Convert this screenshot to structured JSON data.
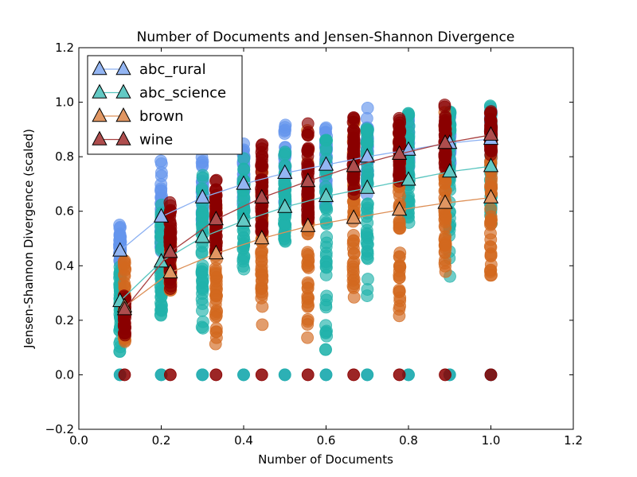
{
  "chart_data": {
    "type": "scatter",
    "title": "Number of Documents and Jensen-Shannon Divergence",
    "xlabel": "Number of Documents",
    "ylabel": "Jensen-Shannon Divergence (scaled)",
    "xlim": [
      0.0,
      1.2
    ],
    "ylim": [
      -0.2,
      1.2
    ],
    "xticks": [
      "0.0",
      "0.2",
      "0.4",
      "0.6",
      "0.8",
      "1.0",
      "1.2"
    ],
    "yticks": [
      "−0.2",
      "0.0",
      "0.2",
      "0.4",
      "0.6",
      "0.8",
      "1.0",
      "1.2"
    ],
    "xtick_values": [
      0.0,
      0.2,
      0.4,
      0.6,
      0.8,
      1.0,
      1.2
    ],
    "ytick_values": [
      -0.2,
      0.0,
      0.2,
      0.4,
      0.6,
      0.8,
      1.0,
      1.2
    ],
    "grid": false,
    "legend_position": "top-left",
    "series": [
      {
        "name": "abc_rural",
        "color": "#6495ED",
        "mean_x": [
          0.1,
          0.2,
          0.3,
          0.4,
          0.5,
          0.6,
          0.7,
          0.8,
          0.9,
          1.0
        ],
        "mean_y": [
          0.455,
          0.58,
          0.65,
          0.7,
          0.74,
          0.77,
          0.8,
          0.825,
          0.85,
          0.865
        ],
        "scatter_ranges": [
          [
            0.4,
            0.56
          ],
          [
            0.45,
            0.79
          ],
          [
            0.55,
            0.82
          ],
          [
            0.55,
            0.86
          ],
          [
            0.58,
            0.92
          ],
          [
            0.62,
            0.94
          ],
          [
            0.65,
            0.98
          ],
          [
            0.7,
            0.96
          ],
          [
            0.72,
            0.97
          ],
          [
            0.74,
            0.98
          ]
        ],
        "zeros": true
      },
      {
        "name": "abc_science",
        "color": "#20B2AA",
        "mean_x": [
          0.1,
          0.2,
          0.3,
          0.4,
          0.5,
          0.6,
          0.7,
          0.8,
          0.9,
          1.0
        ],
        "mean_y": [
          0.27,
          0.415,
          0.505,
          0.565,
          0.615,
          0.655,
          0.685,
          0.715,
          0.745,
          0.765
        ],
        "scatter_ranges": [
          [
            0.08,
            0.4
          ],
          [
            0.17,
            0.64
          ],
          [
            0.17,
            0.74
          ],
          [
            0.38,
            0.82
          ],
          [
            0.46,
            0.82
          ],
          [
            0.09,
            0.86
          ],
          [
            0.27,
            0.92
          ],
          [
            0.52,
            0.97
          ],
          [
            0.3,
            0.98
          ],
          [
            0.5,
            1.0
          ]
        ],
        "zeros": true
      },
      {
        "name": "brown",
        "color": "#D2691E",
        "mean_x": [
          0.111,
          0.222,
          0.333,
          0.444,
          0.556,
          0.667,
          0.778,
          0.889,
          1.0
        ],
        "mean_y": [
          0.25,
          0.375,
          0.445,
          0.5,
          0.545,
          0.575,
          0.605,
          0.63,
          0.65
        ],
        "scatter_ranges": [
          [
            0.09,
            0.43
          ],
          [
            0.3,
            0.5
          ],
          [
            0.06,
            0.65
          ],
          [
            0.15,
            0.78
          ],
          [
            0.1,
            0.9
          ],
          [
            0.2,
            0.93
          ],
          [
            0.17,
            0.9
          ],
          [
            0.33,
            0.98
          ],
          [
            0.36,
            1.0
          ]
        ],
        "zeros": false
      },
      {
        "name": "wine",
        "color": "#8B0000",
        "mean_x": [
          0.111,
          0.222,
          0.333,
          0.444,
          0.556,
          0.667,
          0.778,
          0.889,
          1.0
        ],
        "mean_y": [
          0.24,
          0.45,
          0.57,
          0.65,
          0.71,
          0.765,
          0.81,
          0.85,
          0.88
        ],
        "scatter_ranges": [
          [
            0.14,
            0.31
          ],
          [
            0.31,
            0.64
          ],
          [
            0.45,
            0.73
          ],
          [
            0.5,
            0.85
          ],
          [
            0.55,
            0.94
          ],
          [
            0.65,
            0.95
          ],
          [
            0.7,
            0.95
          ],
          [
            0.75,
            1.0
          ],
          [
            0.8,
            0.98
          ]
        ],
        "zeros": true
      }
    ]
  }
}
